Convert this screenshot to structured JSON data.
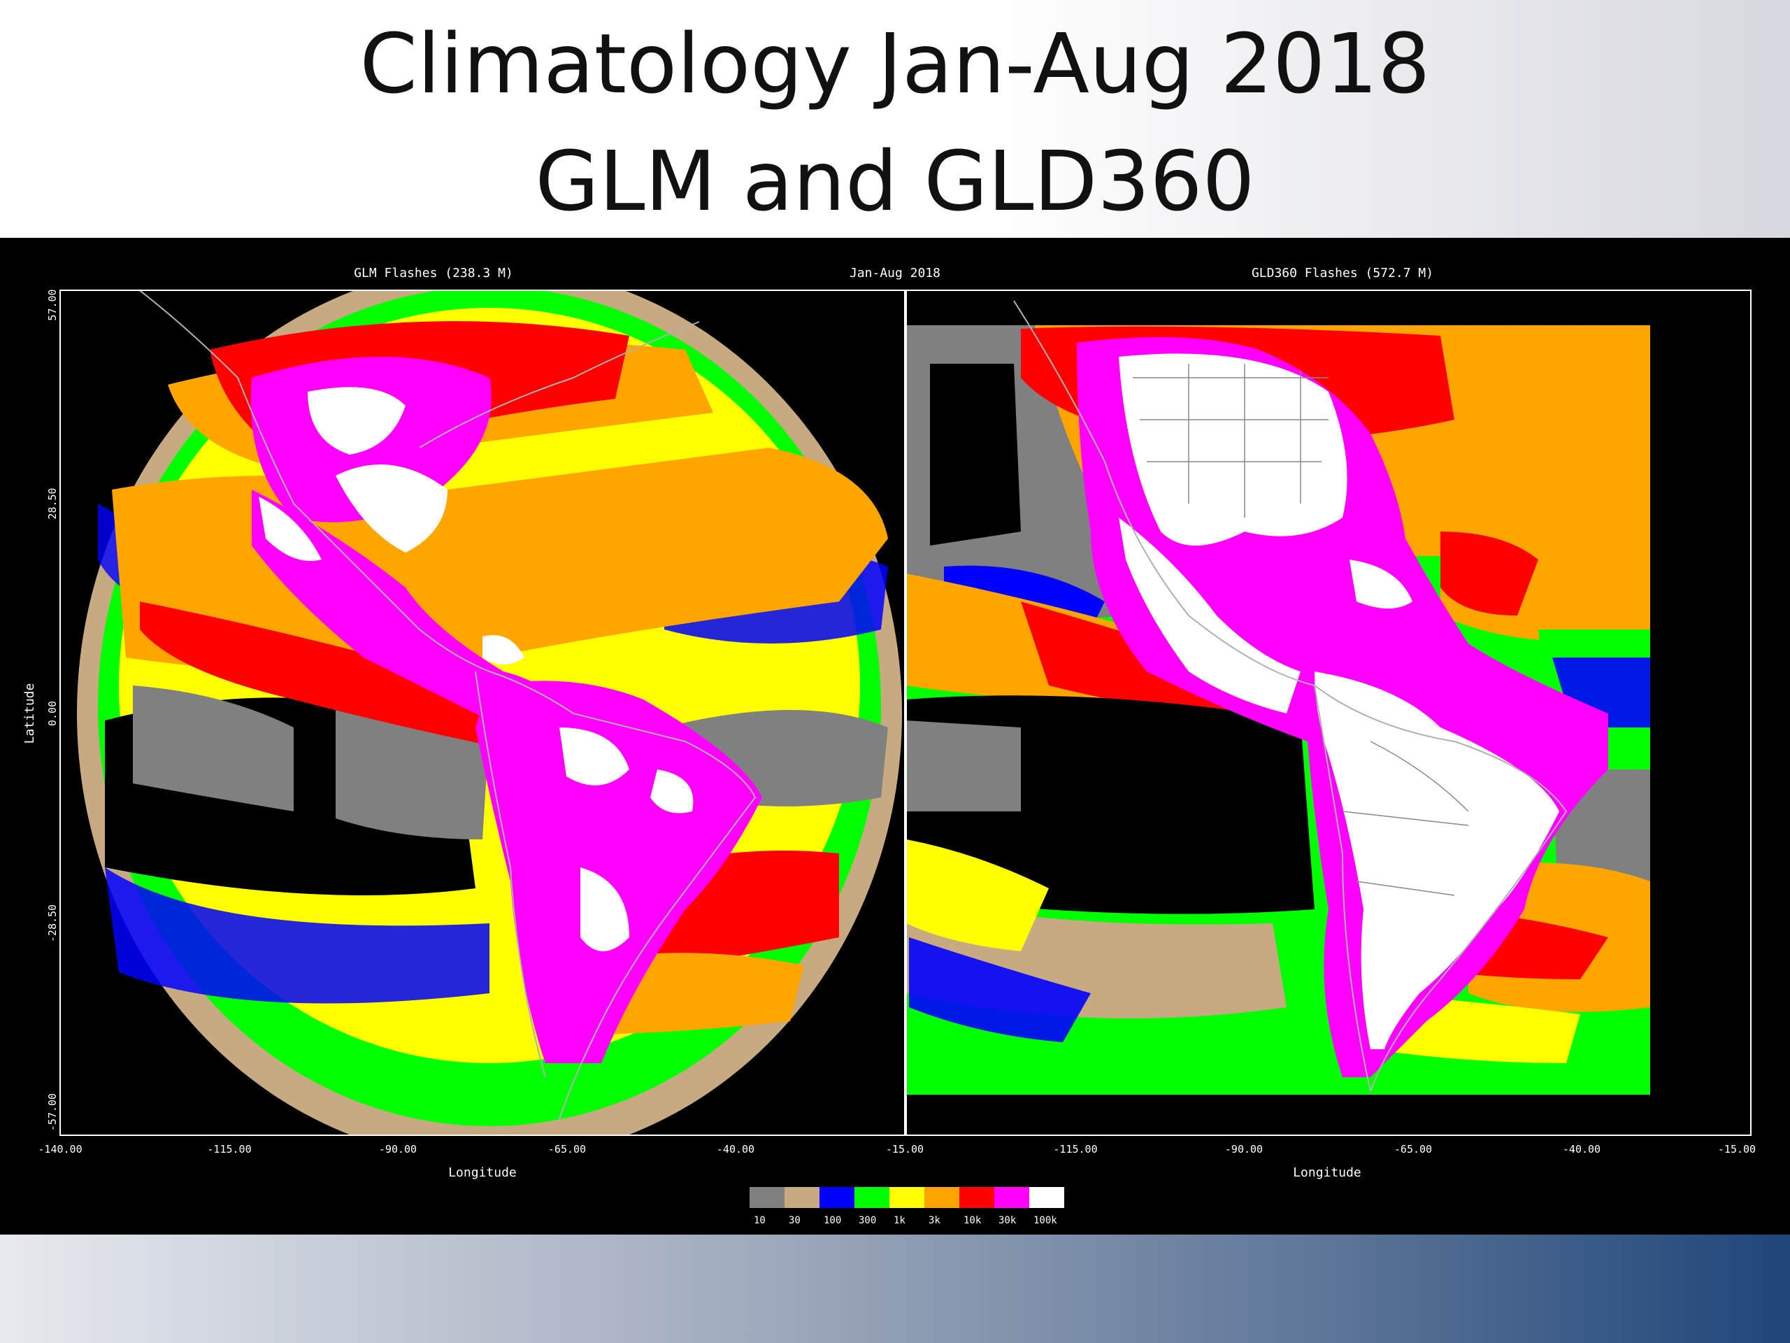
{
  "slide": {
    "title_line1": "Climatology Jan-Aug 2018",
    "title_line2": "GLM  and  GLD360"
  },
  "figure": {
    "center_title": "Jan-Aug 2018",
    "left_panel_title": "GLM Flashes (238.3 M)",
    "right_panel_title": "GLD360 Flashes (572.7 M)",
    "y_axis_label": "Latitude",
    "x_axis_label": "Longitude",
    "y_ticks": [
      "57.00",
      "28.50",
      "0.00",
      "-28.50",
      "-57.00"
    ],
    "x_ticks_left": [
      "-140.00",
      "-115.00",
      "-90.00",
      "-65.00",
      "-40.00",
      "-15.00"
    ],
    "x_ticks_right": [
      "-115.00",
      "-90.00",
      "-65.00",
      "-40.00",
      "-15.00"
    ],
    "colorbar": {
      "labels": [
        "10",
        "30",
        "100",
        "300",
        "1k",
        "3k",
        "10k",
        "30k",
        "100k"
      ],
      "colors": [
        "#808080",
        "#c8aa82",
        "#0000ff",
        "#00ff00",
        "#ffff00",
        "#ffa500",
        "#ff0000",
        "#ff00ff",
        "#ffffff"
      ]
    }
  }
}
